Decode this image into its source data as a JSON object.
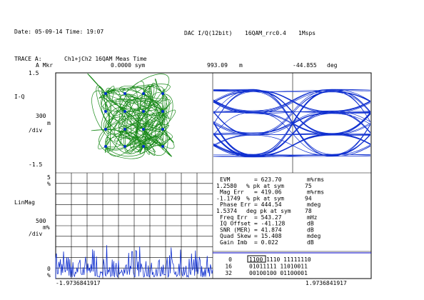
{
  "header": {
    "date": "Date: 05-09-14  Time: 19:07",
    "source": "DAC I/Q(12bit)",
    "format": "16QAM_rrc0.4",
    "rate": "1Msps"
  },
  "trace": {
    "label": "TRACE A:",
    "description": "Ch1+jCh2 16QAM Meas Time",
    "marker": {
      "label": "A Mkr",
      "position": "0.0000 sym",
      "value": "993.09",
      "unit": "m",
      "phase": "-44.855",
      "phase_unit": "deg"
    }
  },
  "iq_axis": {
    "top": "1.5",
    "name": "I-Q",
    "scale": "300",
    "scale_unit": "m",
    "per_div": "/div",
    "bottom": "-1.5"
  },
  "mag_axis": {
    "top": "5",
    "top_unit": "%",
    "name": "LinMag",
    "scale": "500",
    "scale_unit": "m%",
    "per_div": "/div",
    "bottom": "0",
    "bottom_unit": "%"
  },
  "time_axis": {
    "start": "-1.9736841917",
    "end": "1.9736841917"
  },
  "errors": {
    "rows": [
      [
        "EVM",
        "= 623.70",
        "m%rms"
      ],
      [
        "1.2580",
        "% pk at sym",
        "75"
      ],
      [
        "Mag Err",
        "= 419.06",
        "m%rms"
      ],
      [
        "-1.1749",
        "% pk at sym",
        "94"
      ],
      [
        "Phase Err",
        "= 444.54",
        "mdeg"
      ],
      [
        "1.5374",
        "deg pk at sym",
        "78"
      ],
      [
        "Freq Err",
        "= 543.27",
        "mHz"
      ],
      [
        "IQ Offset",
        "= -41.128",
        "dB"
      ],
      [
        "SNR (MER)",
        "= 41.874",
        "dB"
      ],
      [
        "Quad Skew",
        "= 15.408",
        "mdeg"
      ],
      [
        "Gain Imb",
        "= 0.022",
        "dB"
      ]
    ]
  },
  "bits": {
    "rows": [
      [
        "0",
        "1100 1110 11111110"
      ],
      [
        "16",
        "01011111 11010011"
      ],
      [
        "32",
        "00100100 01100001"
      ]
    ]
  }
}
